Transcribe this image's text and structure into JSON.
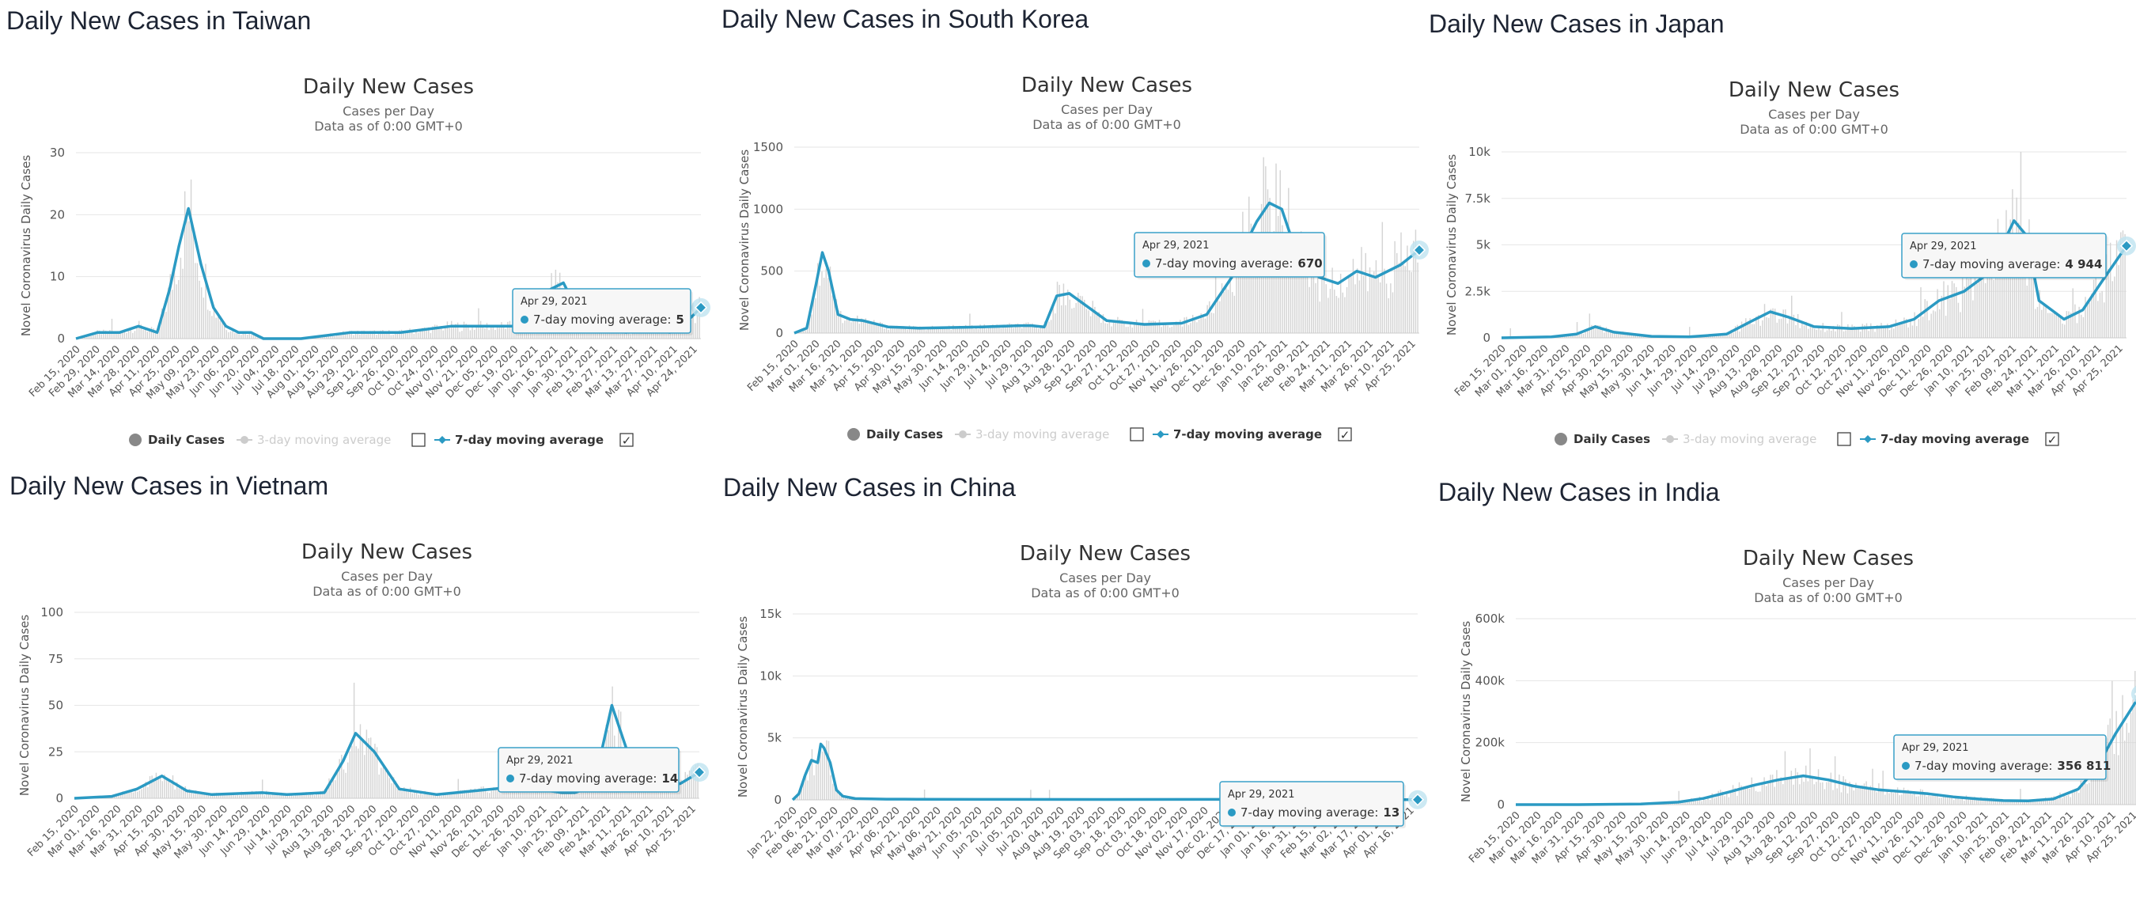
{
  "colors": {
    "line": "#2b9ac3",
    "bars": "#d4d4d4",
    "grid": "#e6e6e6",
    "axis_text": "#555555",
    "legend_inactive": "#cccccc",
    "tooltip_border": "#3aa0c8",
    "tooltip_bg": "#f7f7f7",
    "marker_halo": "#bfe3f0"
  },
  "panels": [
    {
      "heading": "Daily New Cases in Taiwan",
      "tooltip": {
        "date": "Apr 29, 2021",
        "label": "7-day moving average:",
        "value": "5"
      },
      "legend": {
        "daily": "Daily Cases",
        "three_day": "3-day moving average",
        "seven_day": "7-day moving average",
        "three_day_checked": false,
        "seven_day_checked": true,
        "check_mark": "✓"
      }
    },
    {
      "heading": "Daily New Cases in South Korea",
      "tooltip": {
        "date": "Apr 29, 2021",
        "label": "7-day moving average:",
        "value": "670"
      },
      "legend": {
        "daily": "Daily Cases",
        "three_day": "3-day moving average",
        "seven_day": "7-day moving average",
        "three_day_checked": false,
        "seven_day_checked": true,
        "check_mark": "✓"
      }
    },
    {
      "heading": "Daily New Cases in Japan",
      "tooltip": {
        "date": "Apr 29, 2021",
        "label": "7-day moving average:",
        "value": "4 944"
      },
      "legend": {
        "daily": "Daily Cases",
        "three_day": "3-day moving average",
        "seven_day": "7-day moving average",
        "three_day_checked": false,
        "seven_day_checked": true,
        "check_mark": "✓"
      }
    },
    {
      "heading": "Daily New Cases in Vietnam",
      "tooltip": {
        "date": "Apr 29, 2021",
        "label": "7-day moving average:",
        "value": "14"
      }
    },
    {
      "heading": "Daily New Cases in China",
      "tooltip": {
        "date": "Apr 29, 2021",
        "label": "7-day moving average:",
        "value": "13"
      }
    },
    {
      "heading": "Daily New Cases in India",
      "tooltip": {
        "date": "Apr 29, 2021",
        "label": "7-day moving average:",
        "value": "356 811"
      }
    }
  ],
  "chart_data": [
    {
      "type": "bar+line",
      "title": "Daily New Cases",
      "subtitle": "Cases per Day",
      "subtitle2": "Data as of 0:00 GMT+0",
      "xlabel": "",
      "ylabel": "Novel Coronavirus Daily Cases",
      "ylim": [
        0,
        30
      ],
      "yticks": [
        0,
        10,
        20,
        30
      ],
      "ytick_labels": [
        "0",
        "10",
        "20",
        "30"
      ],
      "grid": true,
      "xtick_labels": [
        "Feb 15, 2020",
        "Feb 29, 2020",
        "Mar 14, 2020",
        "Mar 28, 2020",
        "Apr 11, 2020",
        "Apr 25, 2020",
        "May 09, 2020",
        "May 23, 2020",
        "Jun 06, 2020",
        "Jun 20, 2020",
        "Jul 04, 2020",
        "Jul 18, 2020",
        "Aug 01, 2020",
        "Aug 15, 2020",
        "Aug 29, 2020",
        "Sep 12, 2020",
        "Sep 26, 2020",
        "Oct 10, 2020",
        "Oct 24, 2020",
        "Nov 07, 2020",
        "Nov 21, 2020",
        "Dec 05, 2020",
        "Dec 19, 2020",
        "Jan 02, 2021",
        "Jan 16, 2021",
        "Jan 30, 2021",
        "Feb 13, 2021",
        "Feb 27, 2021",
        "Mar 13, 2021",
        "Mar 27, 2021",
        "Apr 10, 2021",
        "Apr 24, 2021"
      ],
      "series": [
        {
          "name": "7-day moving average",
          "x": [
            0,
            0.035,
            0.07,
            0.1,
            0.13,
            0.15,
            0.165,
            0.18,
            0.2,
            0.22,
            0.24,
            0.26,
            0.28,
            0.3,
            0.36,
            0.44,
            0.52,
            0.6,
            0.64,
            0.7,
            0.74,
            0.76,
            0.78,
            0.8,
            0.84,
            0.88,
            0.92,
            0.95,
            0.97,
            1
          ],
          "y": [
            0,
            1,
            1,
            2,
            1,
            8,
            15,
            21,
            12,
            5,
            2,
            1,
            1,
            0,
            0,
            1,
            1,
            2,
            2,
            2,
            3,
            8,
            9,
            5,
            3,
            1,
            2,
            1,
            2,
            5
          ]
        }
      ]
    },
    {
      "type": "bar+line",
      "title": "Daily New Cases",
      "subtitle": "Cases per Day",
      "subtitle2": "Data as of 0:00 GMT+0",
      "xlabel": "",
      "ylabel": "Novel Coronavirus Daily Cases",
      "ylim": [
        0,
        1500
      ],
      "yticks": [
        0,
        500,
        1000,
        1500
      ],
      "ytick_labels": [
        "0",
        "500",
        "1000",
        "1500"
      ],
      "grid": true,
      "xtick_labels": [
        "Feb 15, 2020",
        "Mar 01, 2020",
        "Mar 16, 2020",
        "Mar 31, 2020",
        "Apr 15, 2020",
        "Apr 30, 2020",
        "May 15, 2020",
        "May 30, 2020",
        "Jun 14, 2020",
        "Jun 29, 2020",
        "Jul 14, 2020",
        "Jul 29, 2020",
        "Aug 13, 2020",
        "Aug 28, 2020",
        "Sep 12, 2020",
        "Sep 27, 2020",
        "Oct 12, 2020",
        "Oct 27, 2020",
        "Nov 11, 2020",
        "Nov 26, 2020",
        "Dec 11, 2020",
        "Dec 26, 2020",
        "Jan 10, 2021",
        "Jan 25, 2021",
        "Feb 09, 2021",
        "Feb 24, 2021",
        "Mar 11, 2021",
        "Mar 26, 2021",
        "Apr 10, 2021",
        "Apr 25, 2021"
      ],
      "series": [
        {
          "name": "7-day moving average",
          "x": [
            0,
            0.02,
            0.035,
            0.045,
            0.055,
            0.07,
            0.09,
            0.11,
            0.15,
            0.2,
            0.3,
            0.36,
            0.38,
            0.4,
            0.42,
            0.44,
            0.5,
            0.56,
            0.62,
            0.66,
            0.7,
            0.72,
            0.74,
            0.76,
            0.78,
            0.8,
            0.84,
            0.87,
            0.9,
            0.93,
            0.97,
            1
          ],
          "y": [
            0,
            40,
            400,
            650,
            500,
            150,
            110,
            100,
            50,
            40,
            50,
            60,
            60,
            50,
            300,
            320,
            100,
            70,
            80,
            150,
            450,
            700,
            900,
            1050,
            1000,
            700,
            450,
            400,
            500,
            450,
            550,
            670
          ]
        }
      ]
    },
    {
      "type": "bar+line",
      "title": "Daily New Cases",
      "subtitle": "Cases per Day",
      "subtitle2": "Data as of 0:00 GMT+0",
      "xlabel": "",
      "ylabel": "Novel Coronavirus Daily Cases",
      "ylim": [
        0,
        10000
      ],
      "yticks": [
        0,
        2500,
        5000,
        7500,
        10000
      ],
      "ytick_labels": [
        "0",
        "2.5k",
        "5k",
        "7.5k",
        "10k"
      ],
      "grid": true,
      "xtick_labels": [
        "Feb 15, 2020",
        "Mar 01, 2020",
        "Mar 16, 2020",
        "Mar 31, 2020",
        "Apr 15, 2020",
        "Apr 30, 2020",
        "May 15, 2020",
        "May 30, 2020",
        "Jun 14, 2020",
        "Jun 29, 2020",
        "Jul 14, 2020",
        "Jul 29, 2020",
        "Aug 13, 2020",
        "Aug 28, 2020",
        "Sep 12, 2020",
        "Sep 27, 2020",
        "Oct 12, 2020",
        "Oct 27, 2020",
        "Nov 11, 2020",
        "Nov 26, 2020",
        "Dec 11, 2020",
        "Dec 26, 2020",
        "Jan 10, 2021",
        "Jan 25, 2021",
        "Feb 09, 2021",
        "Feb 24, 2021",
        "Mar 11, 2021",
        "Mar 26, 2021",
        "Apr 10, 2021",
        "Apr 25, 2021"
      ],
      "series": [
        {
          "name": "7-day moving average",
          "x": [
            0,
            0.08,
            0.12,
            0.15,
            0.18,
            0.24,
            0.3,
            0.36,
            0.4,
            0.43,
            0.46,
            0.5,
            0.56,
            0.62,
            0.66,
            0.7,
            0.74,
            0.78,
            0.82,
            0.84,
            0.86,
            0.9,
            0.93,
            0.96,
            1
          ],
          "y": [
            0,
            50,
            200,
            600,
            300,
            80,
            50,
            200,
            900,
            1400,
            1100,
            600,
            500,
            600,
            1000,
            2000,
            2500,
            3500,
            6300,
            5500,
            2000,
            1000,
            1500,
            3000,
            4944
          ]
        }
      ]
    },
    {
      "type": "bar+line",
      "title": "Daily New Cases",
      "subtitle": "Cases per Day",
      "subtitle2": "Data as of 0:00 GMT+0",
      "xlabel": "",
      "ylabel": "Novel Coronavirus Daily Cases",
      "ylim": [
        0,
        100
      ],
      "yticks": [
        0,
        25,
        50,
        75,
        100
      ],
      "ytick_labels": [
        "0",
        "25",
        "50",
        "75",
        "100"
      ],
      "grid": true,
      "xtick_labels": [
        "Feb 15, 2020",
        "Mar 01, 2020",
        "Mar 16, 2020",
        "Mar 31, 2020",
        "Apr 15, 2020",
        "Apr 30, 2020",
        "May 15, 2020",
        "May 30, 2020",
        "Jun 14, 2020",
        "Jun 29, 2020",
        "Jul 14, 2020",
        "Jul 29, 2020",
        "Aug 13, 2020",
        "Aug 28, 2020",
        "Sep 12, 2020",
        "Sep 27, 2020",
        "Oct 12, 2020",
        "Oct 27, 2020",
        "Nov 11, 2020",
        "Nov 26, 2020",
        "Dec 11, 2020",
        "Dec 26, 2020",
        "Jan 10, 2021",
        "Jan 25, 2021",
        "Feb 09, 2021",
        "Feb 24, 2021",
        "Mar 11, 2021",
        "Mar 26, 2021",
        "Apr 10, 2021",
        "Apr 25, 2021"
      ],
      "series": [
        {
          "name": "7-day moving average",
          "x": [
            0,
            0.06,
            0.1,
            0.14,
            0.18,
            0.22,
            0.3,
            0.34,
            0.4,
            0.43,
            0.45,
            0.48,
            0.52,
            0.58,
            0.64,
            0.7,
            0.74,
            0.78,
            0.8,
            0.82,
            0.84,
            0.86,
            0.88,
            0.9,
            0.94,
            0.97,
            1
          ],
          "y": [
            0,
            1,
            5,
            12,
            4,
            2,
            3,
            2,
            3,
            20,
            35,
            25,
            5,
            2,
            4,
            6,
            5,
            3,
            3,
            5,
            20,
            50,
            30,
            10,
            5,
            8,
            14
          ]
        }
      ]
    },
    {
      "type": "bar+line",
      "title": "Daily New Cases",
      "subtitle": "Cases per Day",
      "subtitle2": "Data as of 0:00 GMT+0",
      "xlabel": "",
      "ylabel": "Novel Coronavirus Daily Cases",
      "ylim": [
        0,
        15000
      ],
      "yticks": [
        0,
        5000,
        10000,
        15000
      ],
      "ytick_labels": [
        "0",
        "5k",
        "10k",
        "15k"
      ],
      "grid": true,
      "xtick_labels": [
        "Jan 22, 2020",
        "Feb 06, 2020",
        "Feb 21, 2020",
        "Mar 07, 2020",
        "Mar 22, 2020",
        "Apr 06, 2020",
        "Apr 21, 2020",
        "May 06, 2020",
        "May 21, 2020",
        "Jun 05, 2020",
        "Jun 20, 2020",
        "Jul 05, 2020",
        "Jul 20, 2020",
        "Aug 04, 2020",
        "Aug 19, 2020",
        "Sep 03, 2020",
        "Sep 18, 2020",
        "Oct 03, 2020",
        "Oct 18, 2020",
        "Nov 02, 2020",
        "Nov 17, 2020",
        "Dec 02, 2020",
        "Dec 17, 2020",
        "Jan 01, 2021",
        "Jan 16, 2021",
        "Jan 31, 2021",
        "Feb 15, 2021",
        "Mar 02, 2021",
        "Mar 17, 2021",
        "Apr 01, 2021",
        "Apr 16, 2021"
      ],
      "series": [
        {
          "name": "7-day moving average",
          "x": [
            0,
            0.01,
            0.02,
            0.03,
            0.04,
            0.045,
            0.05,
            0.06,
            0.07,
            0.08,
            0.1,
            0.15,
            0.2,
            0.3,
            0.5,
            0.7,
            0.8,
            0.9,
            1
          ],
          "y": [
            0,
            500,
            2000,
            3200,
            3000,
            4500,
            4200,
            3000,
            800,
            300,
            100,
            60,
            50,
            40,
            30,
            40,
            60,
            40,
            13
          ]
        }
      ]
    },
    {
      "type": "bar+line",
      "title": "Daily New Cases",
      "subtitle": "Cases per Day",
      "subtitle2": "Data as of 0:00 GMT+0",
      "xlabel": "",
      "ylabel": "Novel Coronavirus Daily Cases",
      "ylim": [
        0,
        600000
      ],
      "yticks": [
        0,
        200000,
        400000,
        600000
      ],
      "ytick_labels": [
        "0",
        "200k",
        "400k",
        "600k"
      ],
      "grid": true,
      "xtick_labels": [
        "Feb 15, 2020",
        "Mar 01, 2020",
        "Mar 16, 2020",
        "Mar 31, 2020",
        "Apr 15, 2020",
        "Apr 30, 2020",
        "May 15, 2020",
        "May 30, 2020",
        "Jun 14, 2020",
        "Jun 29, 2020",
        "Jul 14, 2020",
        "Jul 29, 2020",
        "Aug 13, 2020",
        "Aug 28, 2020",
        "Sep 12, 2020",
        "Sep 27, 2020",
        "Oct 12, 2020",
        "Oct 27, 2020",
        "Nov 11, 2020",
        "Nov 26, 2020",
        "Dec 11, 2020",
        "Dec 26, 2020",
        "Jan 10, 2021",
        "Jan 25, 2021",
        "Feb 09, 2021",
        "Feb 24, 2021",
        "Mar 11, 2021",
        "Mar 26, 2021",
        "Apr 10, 2021",
        "Apr 25, 2021"
      ],
      "series": [
        {
          "name": "7-day moving average",
          "x": [
            0,
            0.1,
            0.2,
            0.26,
            0.3,
            0.34,
            0.38,
            0.42,
            0.46,
            0.5,
            0.54,
            0.58,
            0.62,
            0.66,
            0.7,
            0.74,
            0.78,
            0.82,
            0.86,
            0.9,
            0.93,
            0.96,
            1
          ],
          "y": [
            0,
            100,
            2000,
            8000,
            20000,
            40000,
            62000,
            80000,
            93000,
            80000,
            60000,
            48000,
            42000,
            35000,
            25000,
            18000,
            13000,
            12000,
            18000,
            50000,
            120000,
            230000,
            356811
          ]
        }
      ]
    }
  ]
}
